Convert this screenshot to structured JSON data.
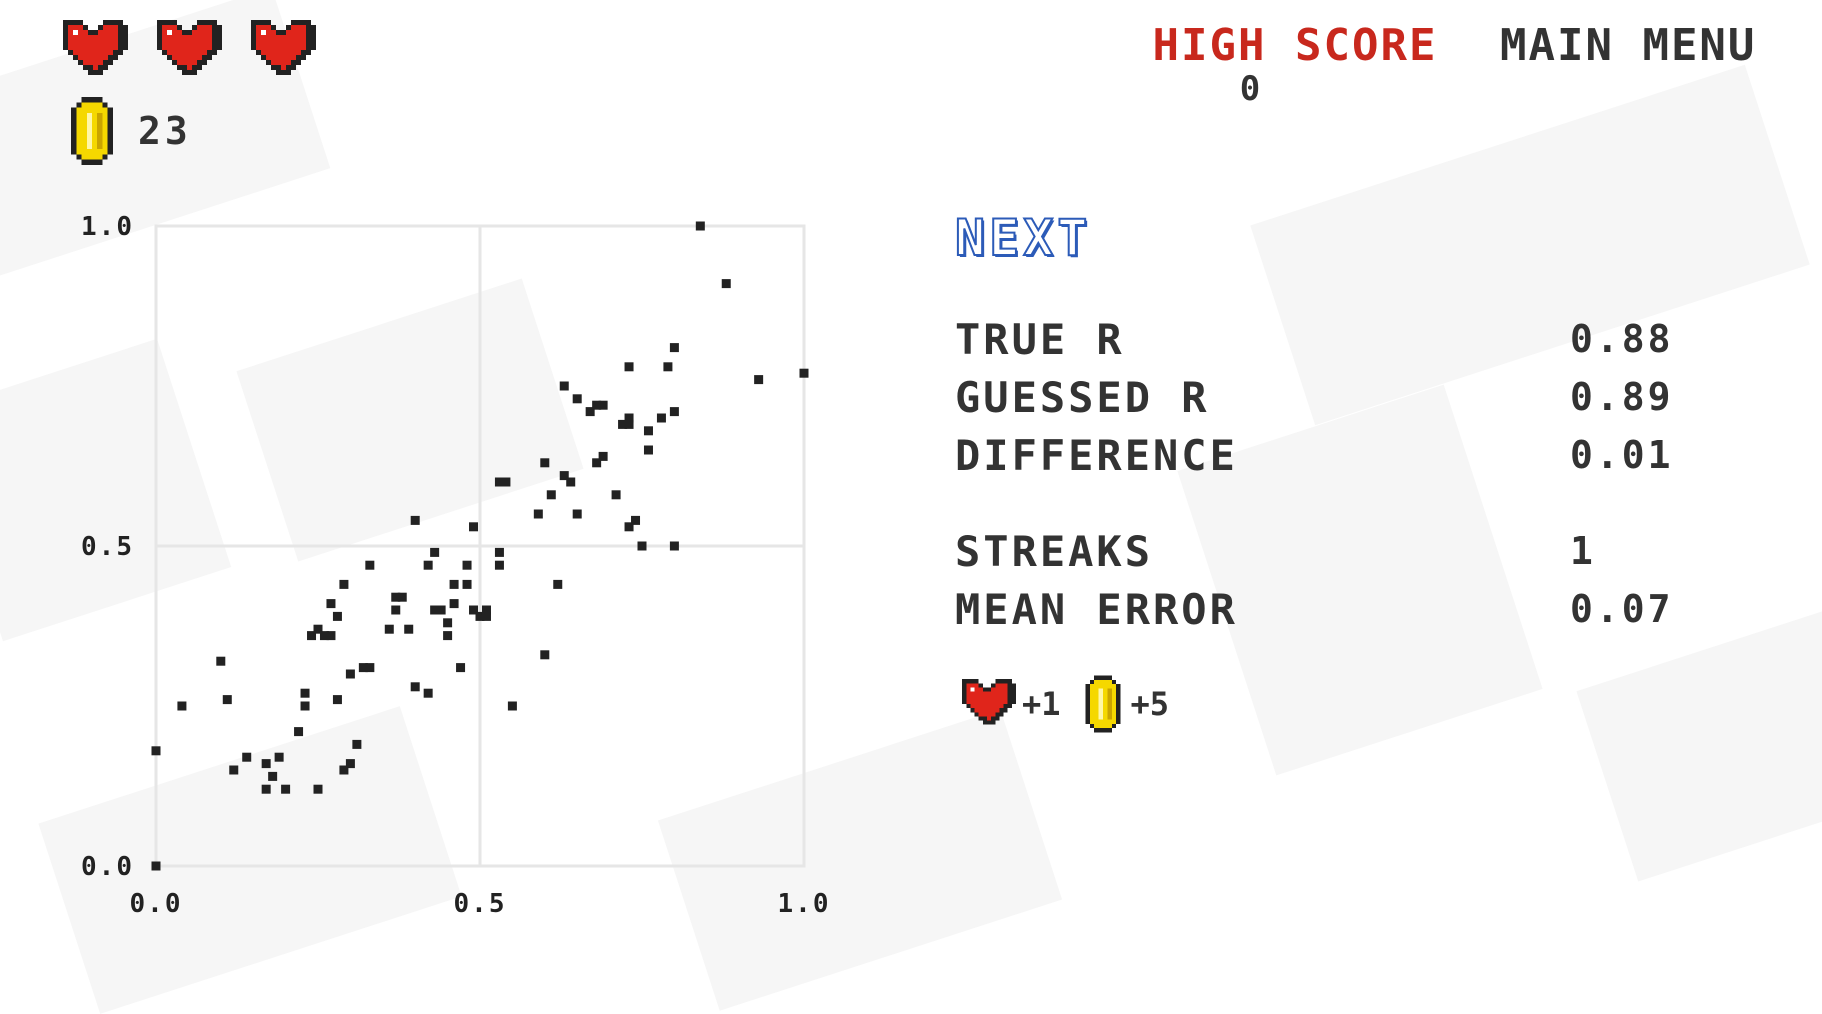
{
  "status": {
    "lives": 3,
    "coins": "23"
  },
  "high_score": {
    "label": "HIGH SCORE",
    "value": "0"
  },
  "menu": {
    "main_menu_label": "MAIN MENU"
  },
  "next_label": "NEXT",
  "stats": [
    {
      "label": "TRUE R",
      "value": "0.88"
    },
    {
      "label": "GUESSED R",
      "value": "0.89"
    },
    {
      "label": "DIFFERENCE",
      "value": "0.01"
    },
    {
      "label": "STREAKS",
      "value": "1"
    },
    {
      "label": "MEAN ERROR",
      "value": "0.07"
    }
  ],
  "rewards": {
    "life": "+1",
    "coins": "+5"
  },
  "colors": {
    "heart": "#e0251b",
    "coin": "#f5d800",
    "high_score": "#c8281d",
    "next": "#2c5bb8"
  },
  "chart_data": {
    "type": "scatter",
    "xlim": [
      0,
      1
    ],
    "ylim": [
      0,
      1
    ],
    "x_ticks": [
      "0.0",
      "0.5",
      "1.0"
    ],
    "y_ticks": [
      "0.0",
      "0.5",
      "1.0"
    ],
    "grid": true,
    "points": [
      [
        0.0,
        0.0
      ],
      [
        0.0,
        0.18
      ],
      [
        0.04,
        0.25
      ],
      [
        0.1,
        0.32
      ],
      [
        0.11,
        0.26
      ],
      [
        0.12,
        0.15
      ],
      [
        0.14,
        0.17
      ],
      [
        0.17,
        0.16
      ],
      [
        0.18,
        0.14
      ],
      [
        0.19,
        0.17
      ],
      [
        0.17,
        0.12
      ],
      [
        0.2,
        0.12
      ],
      [
        0.22,
        0.21
      ],
      [
        0.23,
        0.25
      ],
      [
        0.23,
        0.27
      ],
      [
        0.25,
        0.12
      ],
      [
        0.24,
        0.36
      ],
      [
        0.25,
        0.37
      ],
      [
        0.26,
        0.36
      ],
      [
        0.27,
        0.36
      ],
      [
        0.28,
        0.39
      ],
      [
        0.27,
        0.41
      ],
      [
        0.29,
        0.44
      ],
      [
        0.28,
        0.26
      ],
      [
        0.29,
        0.15
      ],
      [
        0.3,
        0.16
      ],
      [
        0.31,
        0.19
      ],
      [
        0.3,
        0.3
      ],
      [
        0.32,
        0.31
      ],
      [
        0.33,
        0.31
      ],
      [
        0.33,
        0.47
      ],
      [
        0.36,
        0.37
      ],
      [
        0.37,
        0.4
      ],
      [
        0.37,
        0.42
      ],
      [
        0.38,
        0.42
      ],
      [
        0.39,
        0.37
      ],
      [
        0.4,
        0.28
      ],
      [
        0.4,
        0.54
      ],
      [
        0.42,
        0.27
      ],
      [
        0.42,
        0.47
      ],
      [
        0.43,
        0.4
      ],
      [
        0.44,
        0.4
      ],
      [
        0.43,
        0.49
      ],
      [
        0.45,
        0.36
      ],
      [
        0.45,
        0.38
      ],
      [
        0.46,
        0.41
      ],
      [
        0.46,
        0.44
      ],
      [
        0.47,
        0.31
      ],
      [
        0.48,
        0.47
      ],
      [
        0.49,
        0.4
      ],
      [
        0.48,
        0.44
      ],
      [
        0.49,
        0.53
      ],
      [
        0.5,
        0.39
      ],
      [
        0.51,
        0.39
      ],
      [
        0.51,
        0.4
      ],
      [
        0.53,
        0.47
      ],
      [
        0.53,
        0.49
      ],
      [
        0.53,
        0.6
      ],
      [
        0.54,
        0.6
      ],
      [
        0.55,
        0.25
      ],
      [
        0.59,
        0.55
      ],
      [
        0.6,
        0.33
      ],
      [
        0.6,
        0.63
      ],
      [
        0.61,
        0.58
      ],
      [
        0.62,
        0.44
      ],
      [
        0.63,
        0.61
      ],
      [
        0.64,
        0.6
      ],
      [
        0.65,
        0.55
      ],
      [
        0.63,
        0.75
      ],
      [
        0.65,
        0.73
      ],
      [
        0.67,
        0.71
      ],
      [
        0.68,
        0.72
      ],
      [
        0.69,
        0.72
      ],
      [
        0.68,
        0.63
      ],
      [
        0.69,
        0.64
      ],
      [
        0.71,
        0.58
      ],
      [
        0.72,
        0.69
      ],
      [
        0.73,
        0.7
      ],
      [
        0.73,
        0.69
      ],
      [
        0.73,
        0.53
      ],
      [
        0.74,
        0.54
      ],
      [
        0.73,
        0.78
      ],
      [
        0.75,
        0.5
      ],
      [
        0.76,
        0.65
      ],
      [
        0.76,
        0.68
      ],
      [
        0.78,
        0.7
      ],
      [
        0.79,
        0.78
      ],
      [
        0.8,
        0.81
      ],
      [
        0.8,
        0.71
      ],
      [
        0.8,
        0.5
      ],
      [
        0.84,
        1.0
      ],
      [
        0.88,
        0.91
      ],
      [
        0.93,
        0.76
      ],
      [
        1.0,
        0.77
      ]
    ]
  }
}
